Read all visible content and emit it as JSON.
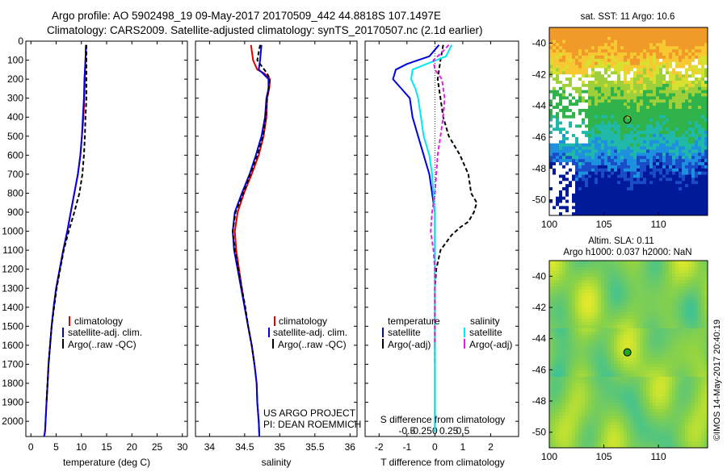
{
  "header": {
    "title_line1": "Argo profile: AO 5902498_19 09-May-2017 20170509_442 44.8818S 107.1497E",
    "title_line2": "Climatology: CARS2009. Satellite-adjusted climatology: synTS_20170507.nc (2.1d earlier)"
  },
  "credits": {
    "project_line1": "US ARGO PROJECT",
    "project_line2": "PI: DEAN ROEMMICH",
    "imos_stamp": "©IMOS 14-May-2017 20:40:19"
  },
  "colors": {
    "climatology": "#e00000",
    "satellite": "#0000e0",
    "argo": "#000000",
    "salinity_satellite": "#00e8f0",
    "salinity_argo": "#e020e0"
  },
  "chart_data": [
    {
      "id": "temperature",
      "type": "line",
      "xlabel": "temperature (deg C)",
      "ylabel": "",
      "xlim": [
        -1,
        31
      ],
      "ylim": [
        2080,
        0
      ],
      "xticks": [
        0,
        5,
        10,
        15,
        20,
        25,
        30
      ],
      "yticks": [
        0,
        100,
        200,
        300,
        400,
        500,
        600,
        700,
        800,
        900,
        1000,
        1100,
        1200,
        1300,
        1400,
        1500,
        1600,
        1700,
        1800,
        1900,
        2000
      ],
      "legend": [
        "climatology",
        "satellite-adj. clim.",
        "Argo(..raw -QC)"
      ],
      "series": [
        {
          "name": "climatology",
          "color": "#e00000",
          "dash": "",
          "x": [
            10.9,
            10.8,
            10.7,
            10.6,
            10.4,
            10.1,
            9.8,
            9.3,
            8.6,
            7.9,
            7.2,
            6.4,
            5.7,
            5.0,
            4.5,
            4.1,
            3.8,
            3.5,
            3.3,
            3.1,
            2.9,
            2.8,
            2.7,
            2.6
          ],
          "y": [
            20,
            100,
            200,
            300,
            400,
            500,
            600,
            700,
            800,
            900,
            1000,
            1100,
            1200,
            1300,
            1400,
            1500,
            1600,
            1700,
            1800,
            1900,
            2000,
            2050,
            2070,
            2080
          ]
        },
        {
          "name": "satellite-adj. clim.",
          "color": "#0000e0",
          "dash": "",
          "x": [
            10.9,
            10.8,
            10.6,
            10.5,
            10.3,
            10.1,
            9.8,
            9.3,
            8.6,
            7.9,
            7.2,
            6.4,
            5.7,
            5.0,
            4.5,
            4.1,
            3.8,
            3.5,
            3.3,
            3.1,
            2.9,
            2.8,
            2.7,
            2.6
          ],
          "y": [
            20,
            100,
            200,
            300,
            400,
            500,
            600,
            700,
            800,
            900,
            1000,
            1100,
            1200,
            1300,
            1400,
            1500,
            1600,
            1700,
            1800,
            1900,
            2000,
            2050,
            2070,
            2080
          ]
        },
        {
          "name": "Argo(..raw -QC)",
          "color": "#000000",
          "dash": "5,3",
          "x": [
            11.0,
            11.0,
            11.0,
            11.0,
            10.8,
            10.7,
            10.5,
            10.2,
            9.6,
            8.6,
            7.5,
            6.5,
            5.8,
            5.1,
            4.6,
            4.1,
            3.8,
            3.5,
            3.3,
            3.1
          ],
          "y": [
            20,
            100,
            200,
            300,
            400,
            500,
            600,
            700,
            800,
            900,
            1000,
            1100,
            1200,
            1300,
            1400,
            1500,
            1600,
            1700,
            1800,
            1900
          ]
        }
      ]
    },
    {
      "id": "salinity",
      "type": "line",
      "xlabel": "salinity",
      "ylabel": "",
      "xlim": [
        33.8,
        36.1
      ],
      "ylim": [
        2080,
        0
      ],
      "xticks": [
        34,
        34.5,
        35,
        35.5,
        36
      ],
      "legend": [
        "climatology",
        "satellite-adj. clim.",
        "Argo(..raw -QC)"
      ],
      "series": [
        {
          "name": "climatology",
          "color": "#e00000",
          "dash": "",
          "x": [
            34.59,
            34.62,
            34.68,
            34.78,
            34.86,
            34.85,
            34.82,
            34.81,
            34.77,
            34.7,
            34.6,
            34.49,
            34.4,
            34.36,
            34.38,
            34.42,
            34.46,
            34.5,
            34.55,
            34.6,
            34.64,
            34.67,
            34.68,
            34.7,
            34.71
          ],
          "y": [
            20,
            100,
            150,
            170,
            200,
            250,
            300,
            400,
            500,
            600,
            700,
            800,
            900,
            1000,
            1100,
            1200,
            1300,
            1400,
            1500,
            1600,
            1700,
            1800,
            1900,
            2000,
            2080
          ]
        },
        {
          "name": "satellite-adj. clim.",
          "color": "#0000e0",
          "dash": "",
          "x": [
            34.74,
            34.72,
            34.7,
            34.76,
            34.84,
            34.84,
            34.81,
            34.79,
            34.74,
            34.66,
            34.57,
            34.46,
            34.36,
            34.33,
            34.35,
            34.4,
            34.45,
            34.5,
            34.55,
            34.6,
            34.64,
            34.67,
            34.68,
            34.7,
            34.71
          ],
          "y": [
            20,
            100,
            150,
            170,
            200,
            250,
            300,
            400,
            500,
            600,
            700,
            800,
            900,
            1000,
            1100,
            1200,
            1300,
            1400,
            1500,
            1600,
            1700,
            1800,
            1900,
            2000,
            2080
          ]
        },
        {
          "name": "Argo(..raw -QC)",
          "color": "#000000",
          "dash": "5,3",
          "x": [
            34.72,
            34.68,
            34.82,
            34.86,
            34.84,
            34.82,
            34.8,
            34.76,
            34.68,
            34.58,
            34.48,
            34.37,
            34.33,
            34.36,
            34.41,
            34.46,
            34.51,
            34.55,
            34.6,
            34.64
          ],
          "y": [
            20,
            100,
            170,
            200,
            250,
            300,
            400,
            500,
            600,
            700,
            800,
            900,
            1000,
            1100,
            1200,
            1300,
            1400,
            1500,
            1600,
            1700
          ]
        }
      ]
    },
    {
      "id": "differences",
      "type": "line",
      "xlabel": "T difference from climatology",
      "x2label": "S difference from climatology",
      "ylabel": "",
      "xlim": [
        -2.5,
        3
      ],
      "ylim": [
        2080,
        0
      ],
      "xticks": [
        -2,
        -1,
        0,
        1,
        2
      ],
      "x2ticks": [
        "-0.5",
        "-0.25",
        "0",
        "0.25",
        "0.5"
      ],
      "legend_groups": [
        {
          "title": "temperature",
          "entries": [
            "satellite",
            "Argo(-adj)"
          ]
        },
        {
          "title": "salinity",
          "entries": [
            "satellite",
            "Argo(-adj)"
          ]
        }
      ],
      "series": [
        {
          "name": "temperature satellite",
          "color": "#0000e0",
          "dash": "",
          "x": [
            0.15,
            -0.2,
            -1.0,
            -1.4,
            -1.5,
            -1.2,
            -0.9,
            -0.8,
            -0.6,
            -0.4,
            -0.2,
            -0.1,
            0.0,
            0.0,
            0.0,
            0.0,
            0.0,
            0.0,
            0.0,
            0.0,
            0.0,
            0.0,
            0.0,
            0.0,
            0.0
          ],
          "y": [
            20,
            80,
            120,
            150,
            200,
            250,
            300,
            400,
            500,
            600,
            700,
            800,
            900,
            1000,
            1100,
            1200,
            1300,
            1400,
            1500,
            1600,
            1700,
            1800,
            1900,
            2000,
            2060
          ]
        },
        {
          "name": "temperature Argo(-adj)",
          "color": "#000000",
          "dash": "5,3",
          "x": [
            0.3,
            0.2,
            0.1,
            0.2,
            0.3,
            0.5,
            0.9,
            1.2,
            1.3,
            1.5,
            1.4,
            1.2,
            0.9,
            0.6,
            0.2,
            0.05,
            0.0,
            0.0,
            0.0,
            0.0
          ],
          "y": [
            20,
            100,
            200,
            300,
            400,
            500,
            600,
            700,
            800,
            850,
            900,
            950,
            980,
            1020,
            1100,
            1200,
            1300,
            1400,
            1600,
            1700
          ]
        },
        {
          "name": "salinity satellite",
          "color": "#00e8f0",
          "dash": "",
          "x": [
            0.6,
            0.4,
            -0.3,
            -0.8,
            -0.85,
            -0.7,
            -0.6,
            -0.5,
            -0.4,
            -0.2,
            -0.1,
            -0.05,
            0.0,
            0.0,
            0.0,
            0.0,
            0.0,
            0.0,
            0.0,
            0.0,
            0.0,
            0.0,
            0.0,
            0.0,
            0.0
          ],
          "y": [
            20,
            80,
            120,
            150,
            200,
            250,
            300,
            400,
            500,
            600,
            700,
            800,
            900,
            1000,
            1100,
            1200,
            1300,
            1400,
            1500,
            1600,
            1700,
            1800,
            1900,
            2000,
            2060
          ]
        },
        {
          "name": "salinity Argo(-adj)",
          "color": "#e020e0",
          "dash": "5,3",
          "x": [
            0.5,
            0.25,
            -0.05,
            0.0,
            0.25,
            0.35,
            0.3,
            0.2,
            0.1,
            0.05,
            0.0,
            -0.1,
            -0.15,
            -0.1,
            -0.05,
            0.0,
            0.0,
            0.0
          ],
          "y": [
            20,
            60,
            100,
            150,
            200,
            300,
            400,
            500,
            600,
            700,
            800,
            900,
            1000,
            1050,
            1100,
            1200,
            1400,
            1600
          ]
        }
      ]
    },
    {
      "id": "sst_map",
      "type": "heatmap",
      "title": "sat. SST: 11  Argo: 10.6",
      "xlim": [
        100,
        114.5
      ],
      "ylim": [
        -51,
        -39
      ],
      "xticks": [
        100,
        105,
        110
      ],
      "yticks": [
        -40,
        -42,
        -44,
        -46,
        -48,
        -50
      ],
      "marker": {
        "lon": 107.15,
        "lat": -44.88
      }
    },
    {
      "id": "sla_map",
      "type": "heatmap",
      "title": "Altim. SLA: 0.11",
      "subtitle": "Argo h1000: 0.037 h2000: NaN",
      "xlim": [
        100,
        114.5
      ],
      "ylim": [
        -51,
        -39
      ],
      "xticks": [
        100,
        105,
        110
      ],
      "yticks": [
        -40,
        -42,
        -44,
        -46,
        -48,
        -50
      ],
      "marker": {
        "lon": 107.15,
        "lat": -44.88
      }
    }
  ]
}
